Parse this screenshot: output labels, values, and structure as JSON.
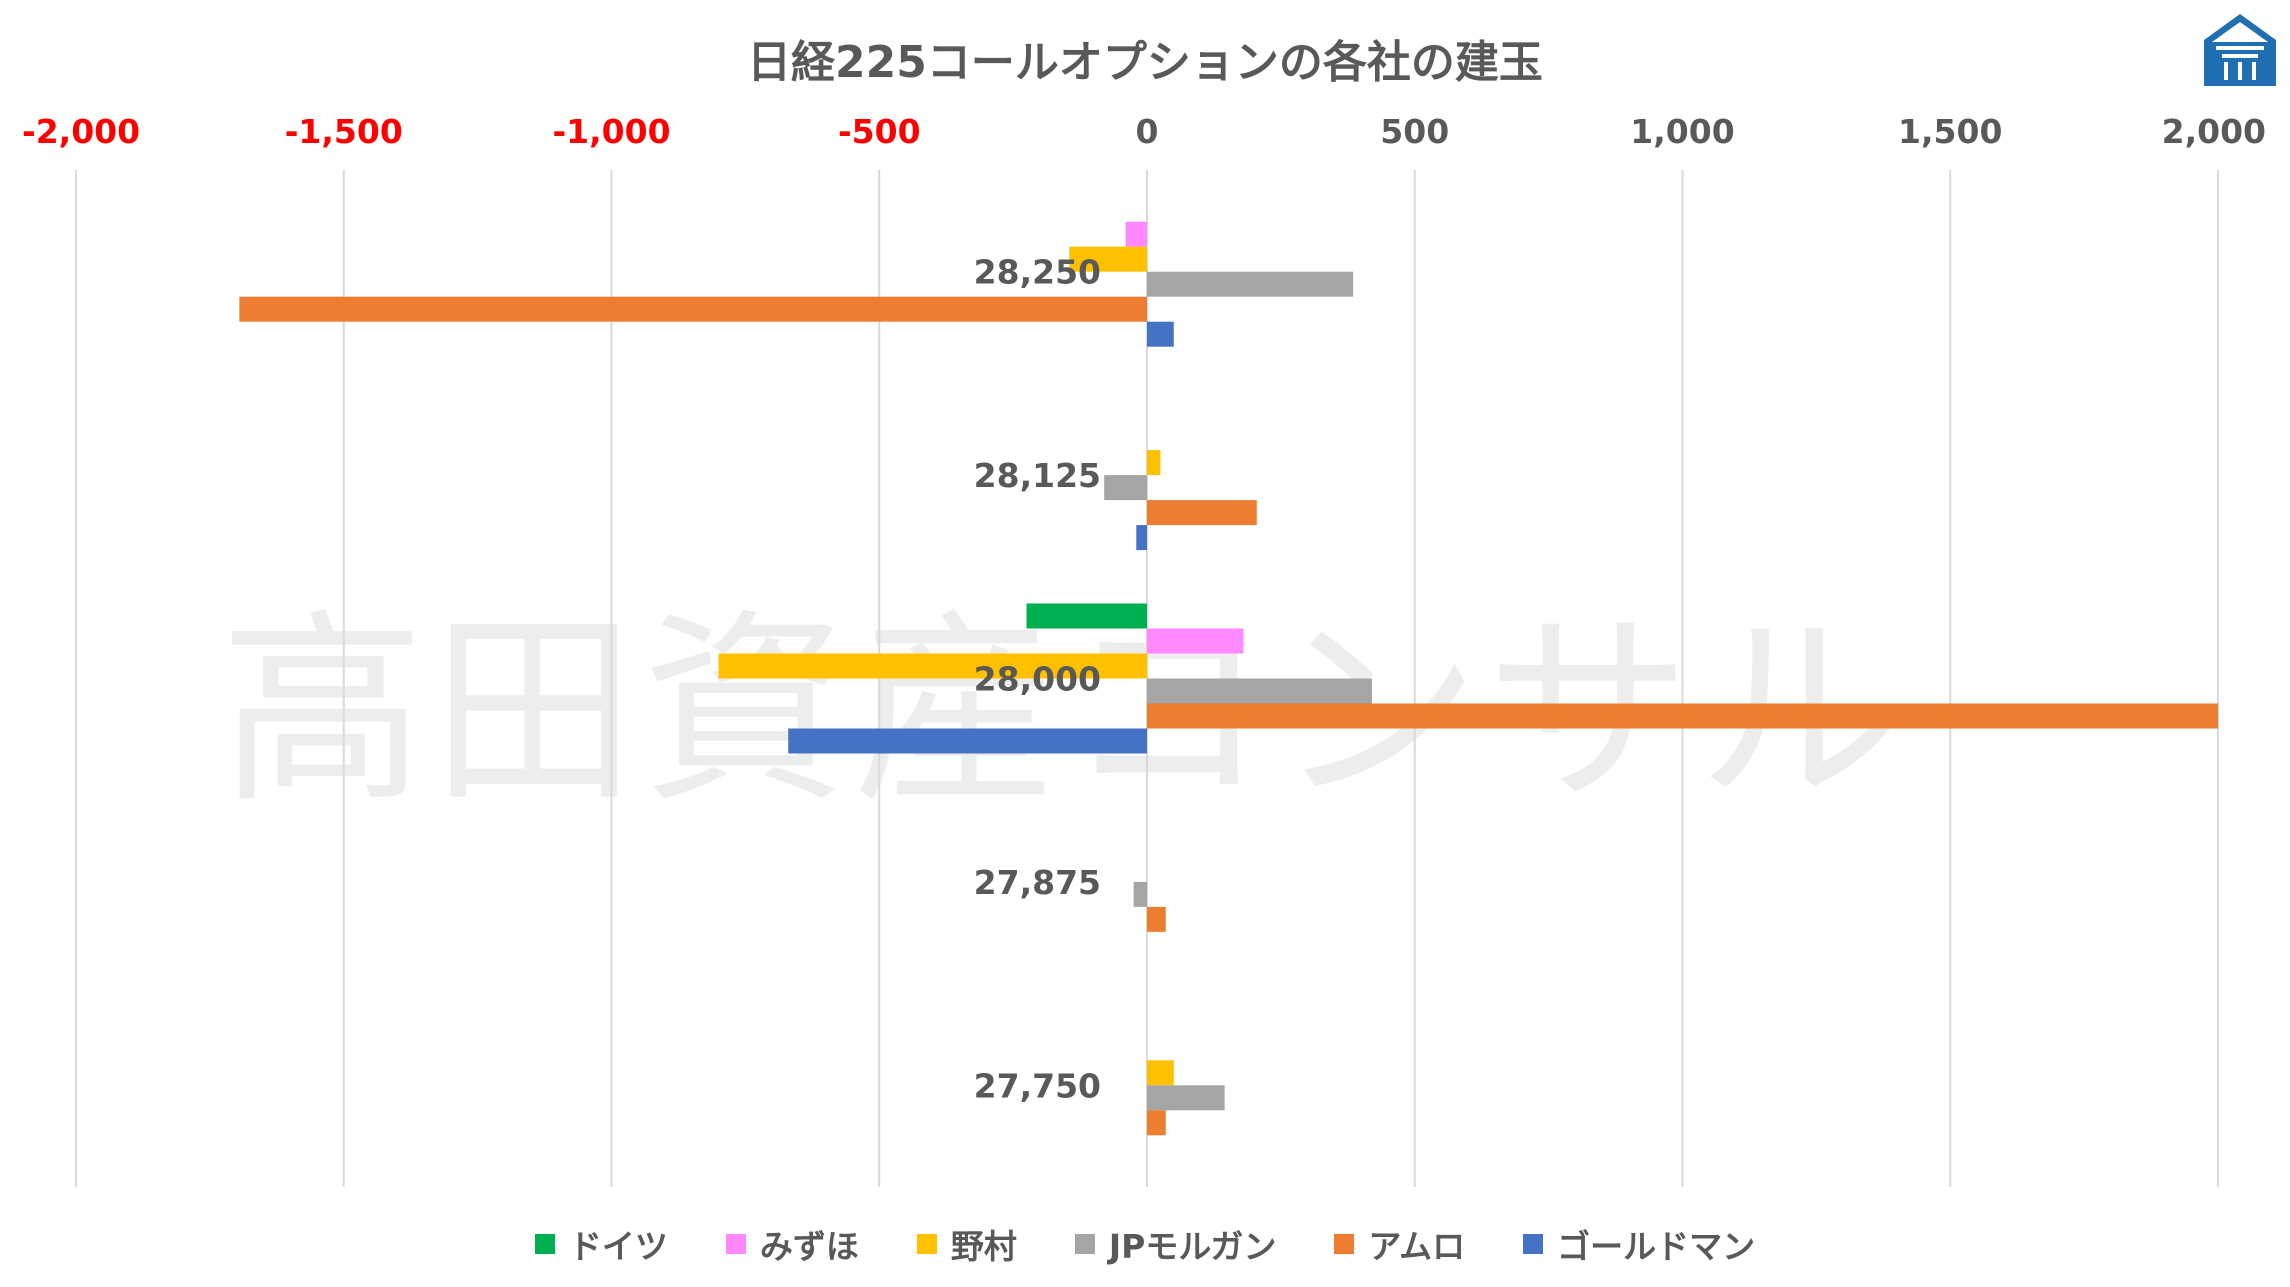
{
  "watermark": "高田資産コンサル",
  "chart_data": {
    "type": "bar",
    "orientation": "horizontal",
    "title": "日経225コールオプションの各社の建玉",
    "categories": [
      "28,250",
      "28,125",
      "28,000",
      "27,875",
      "27,750"
    ],
    "xlim": [
      -2000,
      2000
    ],
    "x_ticks": [
      -2000,
      -1500,
      -1000,
      -500,
      0,
      500,
      1000,
      1500,
      2000
    ],
    "x_tick_labels": [
      "-2,000",
      "-1,500",
      "-1,000",
      "-500",
      "0",
      "500",
      "1,000",
      "1,500",
      "2,000"
    ],
    "negative_tick_color": "#ff0000",
    "positive_tick_color": "#595959",
    "axis_position": "top",
    "grid": true,
    "legend_position": "bottom",
    "series": [
      {
        "name": "ドイツ",
        "color": "#00b050",
        "values": [
          0,
          0,
          -225,
          0,
          0
        ]
      },
      {
        "name": "みずほ",
        "color": "#ff88ff",
        "values": [
          -40,
          0,
          180,
          0,
          0
        ]
      },
      {
        "name": "野村",
        "color": "#ffc000",
        "values": [
          -145,
          25,
          -800,
          0,
          50
        ]
      },
      {
        "name": "JPモルガン",
        "color": "#a5a5a5",
        "values": [
          385,
          -80,
          420,
          -25,
          145
        ]
      },
      {
        "name": "アムロ",
        "color": "#ed7d31",
        "values": [
          -1695,
          205,
          2000,
          35,
          35
        ]
      },
      {
        "name": "ゴールドマン",
        "color": "#4472c4",
        "values": [
          50,
          -20,
          -670,
          0,
          0
        ]
      }
    ]
  }
}
